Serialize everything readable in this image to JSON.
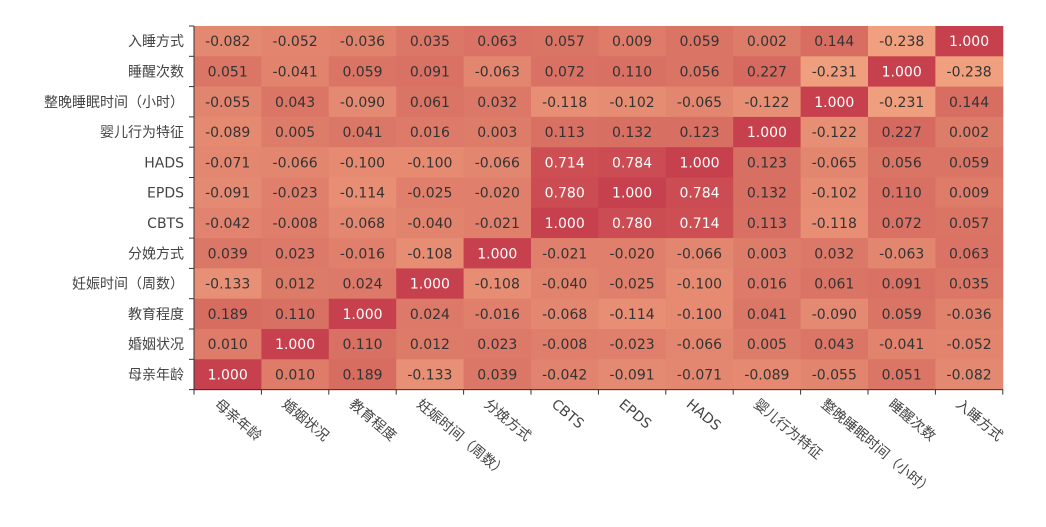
{
  "chart_data": {
    "type": "heatmap",
    "title": "",
    "xlabel": "",
    "ylabel": "",
    "categories": [
      "母亲年龄",
      "婚姻状况",
      "教育程度",
      "妊娠时间（周数）",
      "分娩方式",
      "CBTS",
      "EPDS",
      "HADS",
      "婴儿行为特征",
      "整晚睡眠时间（小时）",
      "睡醒次数",
      "入睡方式"
    ],
    "y_categories_top_to_bottom": [
      "入睡方式",
      "睡醒次数",
      "整晚睡眠时间（小时）",
      "婴儿行为特征",
      "HADS",
      "EPDS",
      "CBTS",
      "分娩方式",
      "妊娠时间（周数）",
      "教育程度",
      "婚姻状况",
      "母亲年龄"
    ],
    "value_range": [
      -0.238,
      1.0
    ],
    "colors": {
      "low": "#f0a07e",
      "mid": "#d97264",
      "high": "#c7404d",
      "text_dark": "#333333",
      "text_light": "#ffffff"
    },
    "matrix": [
      [
        1.0,
        0.01,
        0.189,
        -0.133,
        0.039,
        -0.042,
        -0.091,
        -0.071,
        -0.089,
        -0.055,
        0.051,
        -0.082
      ],
      [
        0.01,
        1.0,
        0.11,
        0.012,
        0.023,
        -0.008,
        -0.023,
        -0.066,
        0.005,
        0.043,
        -0.041,
        -0.052
      ],
      [
        0.189,
        0.11,
        1.0,
        0.024,
        -0.016,
        -0.068,
        -0.114,
        -0.1,
        0.041,
        -0.09,
        0.059,
        -0.036
      ],
      [
        -0.133,
        0.012,
        0.024,
        1.0,
        -0.108,
        -0.04,
        -0.025,
        -0.1,
        0.016,
        0.061,
        0.091,
        0.035
      ],
      [
        0.039,
        0.023,
        -0.016,
        -0.108,
        1.0,
        -0.021,
        -0.02,
        -0.066,
        0.003,
        0.032,
        -0.063,
        0.063
      ],
      [
        -0.042,
        -0.008,
        -0.068,
        -0.04,
        -0.021,
        1.0,
        0.78,
        0.714,
        0.113,
        -0.118,
        0.072,
        0.057
      ],
      [
        -0.091,
        -0.023,
        -0.114,
        -0.025,
        -0.02,
        0.78,
        1.0,
        0.784,
        0.132,
        -0.102,
        0.11,
        0.009
      ],
      [
        -0.071,
        -0.066,
        -0.1,
        -0.1,
        -0.066,
        0.714,
        0.784,
        1.0,
        0.123,
        -0.065,
        0.056,
        0.059
      ],
      [
        -0.089,
        0.005,
        0.041,
        0.016,
        0.003,
        0.113,
        0.132,
        0.123,
        1.0,
        -0.122,
        0.227,
        0.002
      ],
      [
        -0.055,
        0.043,
        -0.09,
        0.061,
        0.032,
        -0.118,
        -0.102,
        -0.065,
        -0.122,
        1.0,
        -0.231,
        0.144
      ],
      [
        0.051,
        -0.041,
        0.059,
        0.091,
        -0.063,
        0.072,
        0.11,
        0.056,
        0.227,
        -0.231,
        1.0,
        -0.238
      ],
      [
        -0.082,
        -0.052,
        -0.036,
        0.035,
        0.063,
        0.057,
        0.009,
        0.059,
        0.002,
        0.144,
        -0.238,
        1.0
      ]
    ],
    "matrix_note": "matrix[i][j] = correlation between categories[i] and categories[j]"
  }
}
